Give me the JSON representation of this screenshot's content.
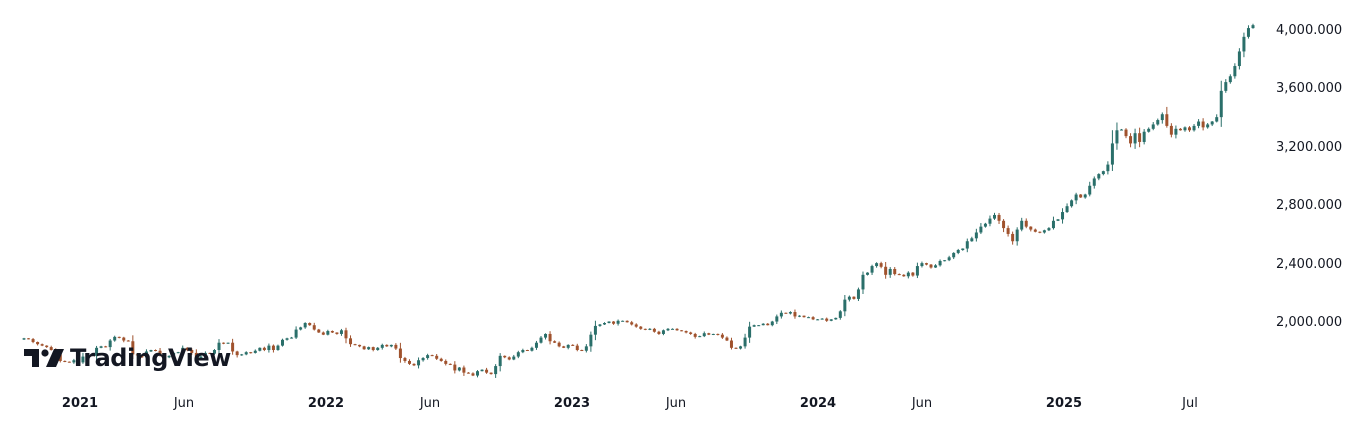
{
  "brand": {
    "name": "TradingView"
  },
  "colors": {
    "up": "#26a69a",
    "down": "#ef5350",
    "up_wick": "#2a6f6a",
    "down_wick": "#a0522d",
    "text": "#131722",
    "background": "#ffffff"
  },
  "chart_data": {
    "type": "candlestick",
    "title": "",
    "interval": "1W",
    "xlabel": "",
    "ylabel": "",
    "ylim": [
      1550,
      4100
    ],
    "y_ticks": [
      "4,000.000",
      "3,600.000",
      "3,200.000",
      "2,800.000",
      "2,400.000",
      "2,000.000"
    ],
    "y_tick_values": [
      4000,
      3600,
      3200,
      2800,
      2400,
      2000
    ],
    "x_ticks": [
      {
        "label": "2021",
        "week": 0,
        "bold": true
      },
      {
        "label": "Jun",
        "week": 21,
        "bold": false
      },
      {
        "label": "2022",
        "week": 52,
        "bold": true
      },
      {
        "label": "Jun",
        "week": 74,
        "bold": false
      },
      {
        "label": "2023",
        "week": 104,
        "bold": true
      },
      {
        "label": "Jun",
        "week": 126,
        "bold": false
      },
      {
        "label": "2024",
        "week": 156,
        "bold": true
      },
      {
        "label": "Jun",
        "week": 178,
        "bold": false
      },
      {
        "label": "2025",
        "week": 208,
        "bold": true
      },
      {
        "label": "Jul",
        "week": 234,
        "bold": false
      }
    ],
    "legend": [],
    "grid": false,
    "weekly_closes": [
      1895,
      1890,
      1870,
      1855,
      1845,
      1835,
      1815,
      1785,
      1740,
      1735,
      1730,
      1745,
      1730,
      1770,
      1780,
      1775,
      1830,
      1840,
      1835,
      1880,
      1905,
      1900,
      1880,
      1875,
      1785,
      1780,
      1765,
      1805,
      1815,
      1810,
      1780,
      1765,
      1775,
      1795,
      1800,
      1830,
      1815,
      1795,
      1755,
      1770,
      1795,
      1790,
      1815,
      1865,
      1860,
      1865,
      1805,
      1780,
      1785,
      1800,
      1795,
      1810,
      1830,
      1815,
      1845,
      1815,
      1845,
      1885,
      1895,
      1900,
      1955,
      1970,
      2000,
      1985,
      1955,
      1935,
      1920,
      1945,
      1935,
      1925,
      1950,
      1895,
      1855,
      1850,
      1840,
      1820,
      1835,
      1815,
      1830,
      1850,
      1840,
      1850,
      1825,
      1760,
      1740,
      1720,
      1710,
      1745,
      1760,
      1780,
      1775,
      1755,
      1740,
      1720,
      1715,
      1675,
      1695,
      1660,
      1655,
      1640,
      1670,
      1680,
      1660,
      1650,
      1705,
      1775,
      1765,
      1750,
      1770,
      1800,
      1815,
      1810,
      1830,
      1865,
      1900,
      1925,
      1875,
      1865,
      1840,
      1830,
      1850,
      1845,
      1815,
      1810,
      1840,
      1920,
      1980,
      1990,
      2000,
      2010,
      1995,
      2015,
      2015,
      2005,
      1990,
      1975,
      1960,
      1955,
      1960,
      1940,
      1925,
      1950,
      1960,
      1960,
      1950,
      1945,
      1935,
      1925,
      1905,
      1910,
      1930,
      1920,
      1925,
      1920,
      1900,
      1880,
      1830,
      1825,
      1840,
      1900,
      1975,
      1985,
      1985,
      1995,
      1985,
      2010,
      2045,
      2070,
      2065,
      2075,
      2045,
      2050,
      2040,
      2040,
      2025,
      2025,
      2030,
      2015,
      2025,
      2035,
      2080,
      2160,
      2180,
      2165,
      2230,
      2330,
      2345,
      2390,
      2410,
      2385,
      2330,
      2370,
      2335,
      2330,
      2320,
      2345,
      2325,
      2390,
      2410,
      2400,
      2380,
      2395,
      2425,
      2430,
      2450,
      2480,
      2500,
      2510,
      2560,
      2580,
      2620,
      2660,
      2680,
      2715,
      2740,
      2700,
      2650,
      2610,
      2560,
      2640,
      2700,
      2660,
      2640,
      2625,
      2620,
      2635,
      2650,
      2700,
      2710,
      2760,
      2800,
      2840,
      2880,
      2860,
      2880,
      2940,
      2990,
      3020,
      3040,
      3085,
      3230,
      3320,
      3325,
      3280,
      3230,
      3300,
      3240,
      3310,
      3330,
      3360,
      3390,
      3430,
      3350,
      3290,
      3330,
      3320,
      3340,
      3320,
      3350,
      3380,
      3340,
      3360,
      3380,
      3410,
      3590,
      3650,
      3690,
      3760,
      3860,
      3960,
      4020,
      4040
    ]
  }
}
